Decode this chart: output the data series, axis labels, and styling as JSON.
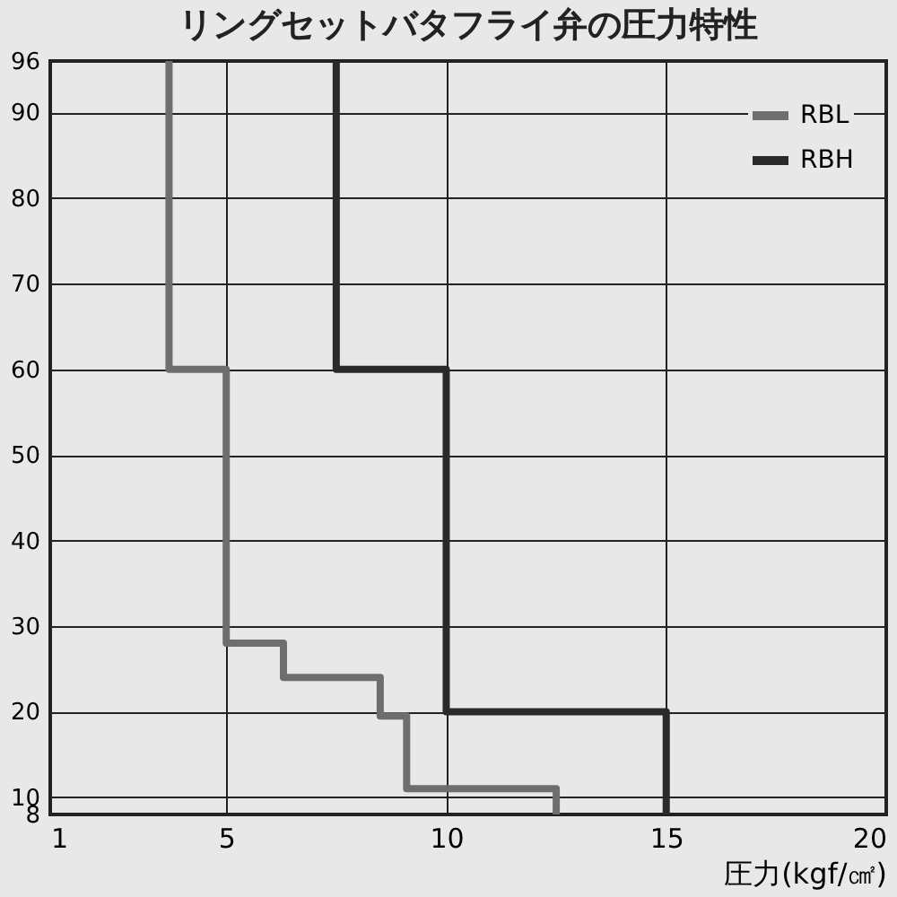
{
  "chart_data": {
    "type": "line",
    "title": "リングセットバタフライ弁の圧力特性",
    "xlabel": "圧力(kgf/㎠)",
    "xlim": [
      1,
      20
    ],
    "xticks": [
      1,
      5,
      10,
      15,
      20
    ],
    "ylim": [
      8,
      96
    ],
    "yticks": [
      8,
      10,
      20,
      30,
      40,
      50,
      60,
      70,
      80,
      90,
      96
    ],
    "grid": true,
    "legend": "top right",
    "marker": "none",
    "line_style": "solid",
    "series": [
      {
        "name": "RBL",
        "color": "#6e6e6e",
        "x": [
          3.7,
          3.7,
          5,
          5,
          6.3,
          6.3,
          8.5,
          8.5,
          9.1,
          9.1,
          12.5,
          12.5
        ],
        "values": [
          96,
          60,
          60,
          28,
          28,
          24,
          24,
          19.5,
          19.5,
          11,
          11,
          8
        ]
      },
      {
        "name": "RBH",
        "color": "#2a2a2a",
        "x": [
          7.5,
          7.5,
          10,
          10,
          15,
          15
        ],
        "values": [
          96,
          60,
          60,
          20,
          20,
          8
        ]
      }
    ]
  }
}
